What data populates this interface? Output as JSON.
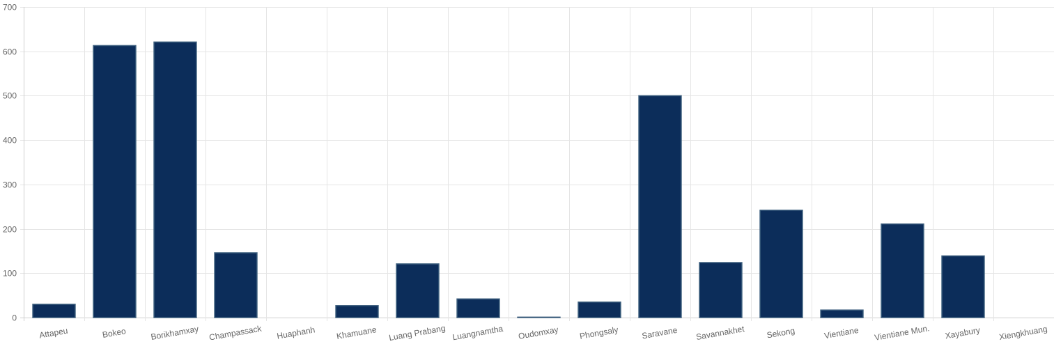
{
  "chart_data": {
    "type": "bar",
    "categories": [
      "Attapeu",
      "Bokeo",
      "Borikhamxay",
      "Champassack",
      "Huaphanh",
      "Khamuane",
      "Luang Prabang",
      "Luangnamtha",
      "Oudomxay",
      "Phongsaly",
      "Saravane",
      "Savannakhet",
      "Sekong",
      "Vientiane",
      "Vientiane Mun.",
      "Xayabury",
      "Xiengkhuang"
    ],
    "values": [
      30,
      613,
      621,
      146,
      0,
      27,
      121,
      42,
      1,
      35,
      500,
      124,
      242,
      17,
      211,
      139,
      0
    ],
    "title": "",
    "xlabel": "",
    "ylabel": "",
    "ylim": [
      0,
      700
    ],
    "yticks": [
      0,
      100,
      200,
      300,
      400,
      500,
      600,
      700
    ],
    "grid": true,
    "legend": "none",
    "colors": {
      "bar_fill": "#0c2d5a",
      "bar_stroke": "#3d5f7e"
    }
  }
}
